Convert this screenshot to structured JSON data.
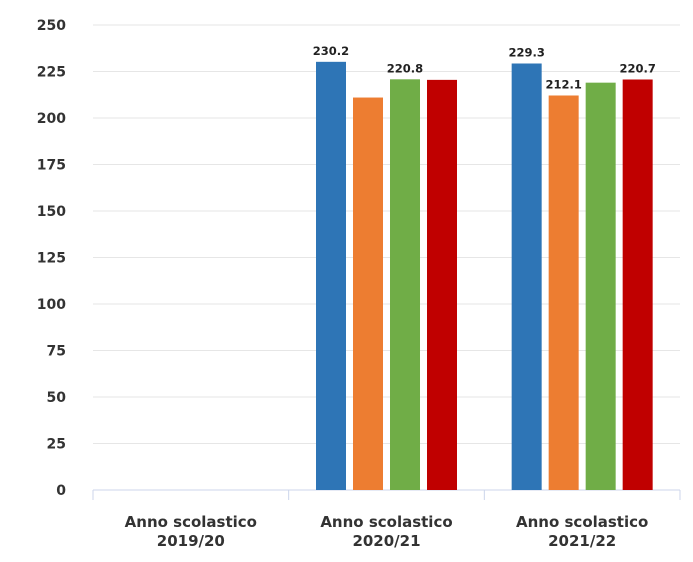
{
  "chart_data": {
    "type": "bar",
    "title": "",
    "xlabel": "",
    "ylabel": "",
    "ylim": [
      0,
      250
    ],
    "yticks": [
      0,
      25,
      50,
      75,
      100,
      125,
      150,
      175,
      200,
      225,
      250
    ],
    "grid": true,
    "legend": "none",
    "categories": [
      [
        "Anno scolastico",
        "2019/20"
      ],
      [
        "Anno scolastico",
        "2020/21"
      ],
      [
        "Anno scolastico",
        "2021/22"
      ]
    ],
    "series": [
      {
        "color": "#2e75b6",
        "values": [
          null,
          230.2,
          229.3
        ],
        "labels": [
          null,
          "230.2",
          "229.3"
        ]
      },
      {
        "color": "#ed7d31",
        "values": [
          null,
          211,
          212.1
        ],
        "labels": [
          null,
          null,
          "212.1"
        ]
      },
      {
        "color": "#70ad47",
        "values": [
          null,
          220.8,
          219
        ],
        "labels": [
          null,
          "220.8",
          null
        ]
      },
      {
        "color": "#c00000",
        "values": [
          null,
          220.5,
          220.7
        ],
        "labels": [
          null,
          null,
          "220.7"
        ]
      }
    ]
  }
}
